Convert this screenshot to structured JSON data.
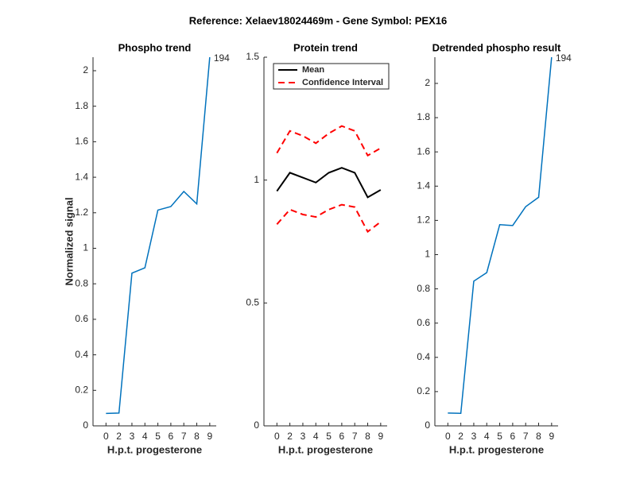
{
  "title": "Reference:  Xelaev18024469m - Gene Symbol:  PEX16",
  "chart_data": [
    {
      "type": "line",
      "title": "Phospho trend",
      "xlabel": "H.p.t. progesterone",
      "ylabel": "Normalized signal",
      "categories": [
        "0",
        "2",
        "3",
        "4",
        "5",
        "6",
        "7",
        "8",
        "9"
      ],
      "series": [
        {
          "name": "Phospho",
          "color": "#0072bd",
          "values": [
            0.07,
            0.072,
            0.86,
            0.89,
            1.215,
            1.235,
            1.32,
            1.25,
            2.076
          ]
        }
      ],
      "annotation": "194",
      "ylim": [
        0,
        2.076
      ],
      "yticks": [
        0,
        0.2,
        0.4,
        0.6,
        0.8,
        1,
        1.2,
        1.4,
        1.6,
        1.8,
        2
      ]
    },
    {
      "type": "band",
      "title": "Protein trend",
      "xlabel": "H.p.t. progesterone",
      "categories": [
        "0",
        "2",
        "3",
        "4",
        "5",
        "6",
        "7",
        "8",
        "9"
      ],
      "series": [
        {
          "name": "Mean",
          "color": "#000000",
          "style": "solid",
          "values": [
            0.955,
            1.03,
            1.01,
            0.99,
            1.03,
            1.05,
            1.03,
            0.93,
            0.96
          ]
        },
        {
          "name": "Confidence Interval",
          "color": "#ff0000",
          "style": "dashed",
          "upper": [
            1.11,
            1.2,
            1.18,
            1.15,
            1.19,
            1.22,
            1.2,
            1.1,
            1.13
          ],
          "lower": [
            0.82,
            0.88,
            0.86,
            0.85,
            0.88,
            0.9,
            0.89,
            0.79,
            0.83
          ]
        }
      ],
      "legend": "upper-left",
      "ylim": [
        0,
        1.5
      ],
      "yticks": [
        0,
        0.5,
        1,
        1.5
      ]
    },
    {
      "type": "line",
      "title": "Detrended phospho result",
      "xlabel": "H.p.t. progesterone",
      "categories": [
        "0",
        "2",
        "3",
        "4",
        "5",
        "6",
        "7",
        "8",
        "9"
      ],
      "series": [
        {
          "name": "Detrended",
          "color": "#0072bd",
          "values": [
            0.075,
            0.073,
            0.845,
            0.895,
            1.175,
            1.17,
            1.28,
            1.335,
            2.153
          ]
        }
      ],
      "annotation": "194",
      "ylim": [
        0,
        2.153
      ],
      "yticks": [
        0,
        0.2,
        0.4,
        0.6,
        0.8,
        1,
        1.2,
        1.4,
        1.6,
        1.8,
        2
      ]
    }
  ]
}
